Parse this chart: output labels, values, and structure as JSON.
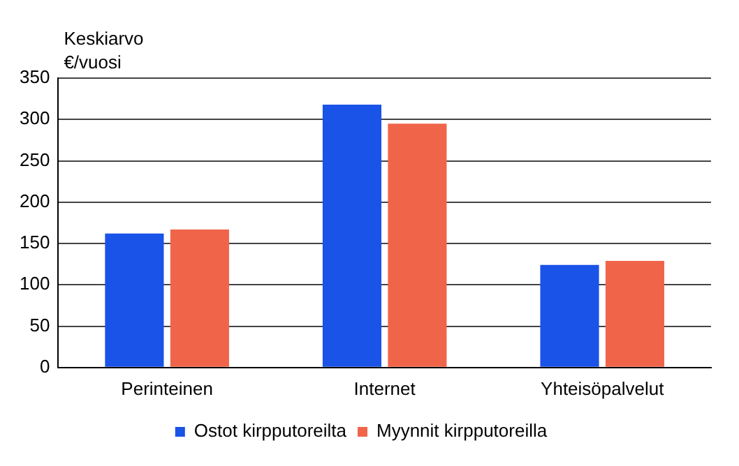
{
  "chart_data": {
    "type": "bar",
    "ylabel": "Keskiarvo\n€/vuosi",
    "categories": [
      "Perinteinen",
      "Internet",
      "Yhteisöpalvelut"
    ],
    "series": [
      {
        "name": "Ostot kirpputoreilta",
        "color": "#1a53e8",
        "values": [
          162,
          318,
          124
        ]
      },
      {
        "name": "Myynnit kirpputoreilla",
        "color": "#f0654a",
        "values": [
          167,
          295,
          129
        ]
      }
    ],
    "ylim": [
      0,
      350
    ],
    "yticks": [
      0,
      50,
      100,
      150,
      200,
      250,
      300,
      350
    ],
    "grid": "y",
    "legend": "bottom"
  }
}
